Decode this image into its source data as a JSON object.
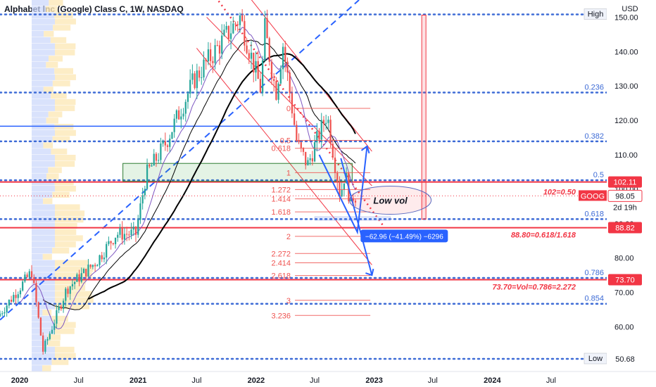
{
  "header": {
    "title": "Alphabet Inc (Google) Class C, 1W, NASDAQ"
  },
  "colors": {
    "up": "#26a69a",
    "down": "#ef5350",
    "blue": "#2962ff",
    "red": "#f23645",
    "axis": "#131722",
    "fib": "#ef5350",
    "blueLevel": "#3d6bd6"
  },
  "chart_data": {
    "type": "candlestick",
    "currency": "USD",
    "ylim": [
      47,
      155
    ],
    "xlim": [
      "2019-11-01",
      "2024-12-20"
    ],
    "x_tick_labels": [
      {
        "date": "2020-01-01",
        "label": "2020"
      },
      {
        "date": "2020-07-01",
        "label": "Jul"
      },
      {
        "date": "2021-01-01",
        "label": "2021"
      },
      {
        "date": "2021-07-01",
        "label": "Jul"
      },
      {
        "date": "2022-01-01",
        "label": "2022"
      },
      {
        "date": "2022-07-01",
        "label": "Jul"
      },
      {
        "date": "2023-01-01",
        "label": "2023"
      },
      {
        "date": "2023-07-01",
        "label": "Jul"
      },
      {
        "date": "2024-01-01",
        "label": "2024"
      },
      {
        "date": "2024-07-01",
        "label": "Jul"
      }
    ],
    "y_tick_labels": [
      "150.00",
      "140.00",
      "130.00",
      "120.00",
      "110.00",
      "100.00",
      "90.00",
      "80.00",
      "70.00",
      "60.00"
    ],
    "y_ticks": [
      150,
      140,
      130,
      120,
      110,
      100,
      90,
      80,
      70,
      60
    ],
    "price_key_points": [
      {
        "date": "2019-11-01",
        "price": 63
      },
      {
        "date": "2020-02-14",
        "price": 76
      },
      {
        "date": "2020-03-20",
        "price": 53
      },
      {
        "date": "2020-06-01",
        "price": 71
      },
      {
        "date": "2020-09-01",
        "price": 79
      },
      {
        "date": "2020-11-01",
        "price": 87
      },
      {
        "date": "2021-01-01",
        "price": 87
      },
      {
        "date": "2021-02-01",
        "price": 104
      },
      {
        "date": "2021-04-01",
        "price": 113
      },
      {
        "date": "2021-07-01",
        "price": 132
      },
      {
        "date": "2021-11-19",
        "price": 150
      },
      {
        "date": "2022-01-25",
        "price": 128
      },
      {
        "date": "2022-02-01",
        "price": 148
      },
      {
        "date": "2022-03-10",
        "price": 128
      },
      {
        "date": "2022-04-01",
        "price": 142
      },
      {
        "date": "2022-05-15",
        "price": 113
      },
      {
        "date": "2022-06-16",
        "price": 107
      },
      {
        "date": "2022-08-15",
        "price": 122
      },
      {
        "date": "2022-09-25",
        "price": 98
      },
      {
        "date": "2022-10-10",
        "price": 105
      },
      {
        "date": "2022-10-28",
        "price": 95
      },
      {
        "date": "2022-11-04",
        "price": 98
      }
    ],
    "horizontal_levels": [
      {
        "price": 150.8,
        "style": "dotted",
        "color": "blue",
        "label": "High",
        "label_style": "tag-box"
      },
      {
        "price": 128.1,
        "style": "dotted",
        "color": "blue",
        "label": "0.236"
      },
      {
        "price": 113.9,
        "style": "dotted",
        "color": "blue",
        "label": "0.382"
      },
      {
        "price": 102.6,
        "style": "dotted",
        "color": "blue",
        "label": "0.5"
      },
      {
        "price": 102.11,
        "style": "solid",
        "color": "red",
        "label": ""
      },
      {
        "price": 91.3,
        "style": "dotted",
        "color": "blue",
        "label": "0.618"
      },
      {
        "price": 88.8,
        "style": "solid",
        "color": "red",
        "label": ""
      },
      {
        "price": 74.2,
        "style": "dotted",
        "color": "blue",
        "label": "0.786"
      },
      {
        "price": 73.7,
        "style": "solid",
        "color": "red",
        "label": ""
      },
      {
        "price": 66.7,
        "style": "dotted",
        "color": "blue",
        "label": "0.854"
      },
      {
        "price": 50.68,
        "style": "dotted",
        "color": "blue",
        "label": "Low",
        "label_style": "tag-box"
      }
    ],
    "price_tags": [
      {
        "price": 102.11,
        "label": "102.11",
        "color": "#f23645",
        "text_color": "#ffffff"
      },
      {
        "price": 98.05,
        "label": "98.05",
        "color": "#ffffff",
        "text_color": "#131722",
        "border": "#f23645"
      },
      {
        "price": 88.82,
        "label": "88.82",
        "color": "#f23645",
        "text_color": "#ffffff"
      },
      {
        "price": 73.7,
        "label": "73.70",
        "color": "#f23645",
        "text_color": "#ffffff"
      },
      {
        "price": 50.68,
        "label": "50.68",
        "color": "#ffffff",
        "text_color": "#131722"
      }
    ],
    "current_price": {
      "price": 98.05,
      "symbol": "GOOG",
      "countdown": "2d 19h"
    },
    "level_annotations": [
      {
        "price": 102.11,
        "text": "102=0.50"
      },
      {
        "price": 88.8,
        "text": "88.80=0.618/1.618"
      },
      {
        "price": 73.7,
        "text": "73.70=Vol=0.786=2.272"
      }
    ],
    "fib_extension": {
      "x_start": "2022-05-01",
      "x_end": "2022-12-20",
      "levels": [
        {
          "label": "0",
          "price": 123.5
        },
        {
          "label": "0.5",
          "price": 114.2
        },
        {
          "label": "0.618",
          "price": 111.9
        },
        {
          "label": "1",
          "price": 104.8
        },
        {
          "label": "1.272",
          "price": 99.9
        },
        {
          "label": "1.414",
          "price": 97.2
        },
        {
          "label": "1.618",
          "price": 93.4
        },
        {
          "label": "2",
          "price": 86.3
        },
        {
          "label": "2.272",
          "price": 81.3
        },
        {
          "label": "2.414",
          "price": 78.6
        },
        {
          "label": "2.618",
          "price": 74.9
        },
        {
          "label": "3",
          "price": 67.7
        },
        {
          "label": "3.236",
          "price": 63.3
        }
      ]
    },
    "annotations": {
      "low_vol": "Low vol",
      "measure": "−62.96 (−41.49%) −6296"
    }
  }
}
